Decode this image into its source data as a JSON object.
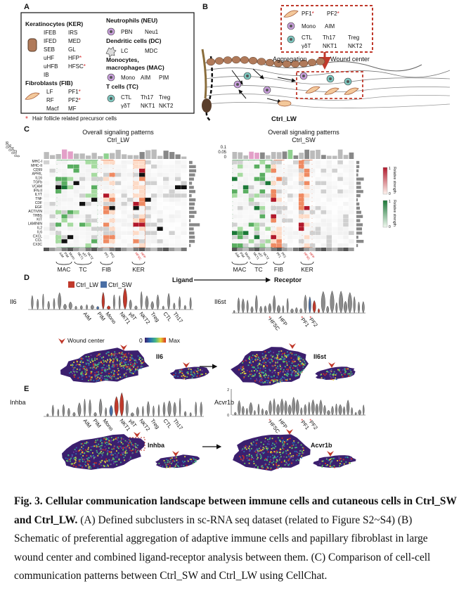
{
  "panel_a": {
    "label": "A",
    "keratinocytes": {
      "name": "Keratinocytes (KER)",
      "items": [
        "IFEB",
        "IRS",
        "IFED",
        "MED",
        "SEB",
        "GL",
        "uHF",
        {
          "text": "HFP",
          "suffix": "*"
        },
        "uHFB",
        {
          "text": "HFSC",
          "suffix": "*"
        },
        "IB"
      ]
    },
    "fibroblasts": {
      "name": "Fibroblasts (FIB)",
      "items": [
        "LF",
        {
          "text": "PF1",
          "suffix": "*"
        },
        "RF",
        {
          "text": "PF2",
          "suffix": "*"
        },
        "Macf",
        "MF"
      ]
    },
    "neutrophils": {
      "name": "Neutrophils (NEU)",
      "items": [
        "PBN",
        "Neu1"
      ]
    },
    "dendritic": {
      "name": "Dendritic cells (DC)",
      "items": [
        "LC",
        "MDC"
      ]
    },
    "macrophages": {
      "name_lines": [
        "Monocytes,",
        "macrophages (MAC)"
      ],
      "items": [
        "Mono",
        "AIM",
        "PIM"
      ]
    },
    "tcells": {
      "name": "T cells (TC)",
      "items": [
        "CTL",
        "Th17",
        "Treg",
        "γδT",
        "NKT1",
        "NKT2"
      ]
    },
    "footnote": {
      "mark": "*",
      "text": "Hair follicle related precursor cells"
    }
  },
  "panel_b": {
    "label": "B",
    "box_items": [
      {
        "text": "PF1",
        "suffix": "*"
      },
      {
        "text": "PF2",
        "suffix": "*"
      },
      "Mono",
      "AIM",
      "CTL",
      "Th17",
      "Treg",
      "γδT",
      "NKT1",
      "NKT2"
    ],
    "aggregation": "Aggregation",
    "wound_center": "Wound center",
    "condition": "Ctrl_LW"
  },
  "panel_c": {
    "label": "C",
    "left_title": "Overall signaling patterns",
    "left_condition": "Ctrl_LW",
    "right_title": "Overall signaling patterns",
    "right_condition": "Ctrl_SW",
    "left_ticks": [
      "0.08",
      "0.06",
      "0.04",
      "0.02",
      "0"
    ],
    "right_ticks": [
      "0.1",
      "0.05",
      "0"
    ],
    "pathways": [
      "MHC-I",
      "MHC-II",
      "CD99",
      "APRIL",
      "IL16",
      "TGFb",
      "VCAM",
      "IFN-II",
      "ILYT",
      "TNF",
      "CDF",
      "EGF",
      "ACTIVIN",
      "THBS",
      "KIT",
      "LAMININ",
      "IL2",
      "IL6",
      "CXCL",
      "CCL",
      "CX3C"
    ],
    "cells": [
      "AIM",
      "PIM",
      "Mono",
      "NKT1",
      "γδT",
      "NKT2",
      "PF1",
      "PF2"
    ],
    "ker_cells": [
      "HFSC",
      "HFP"
    ],
    "groups": [
      "MAC",
      "TC",
      "FIB",
      "KER"
    ],
    "colorbar_title": "Relative strength",
    "colorbar_max": "1",
    "colorbar_min": "0"
  },
  "panel_d": {
    "label": "D",
    "ligand": "Ligand",
    "receptor": "Receptor",
    "legend": [
      "Ctrl_LW",
      "Ctrl_SW"
    ],
    "ligand_gene": "Il6",
    "receptor_gene": "Il6st",
    "ligand_cells": [
      "AIM",
      "PIM",
      "Mono",
      "NKT1",
      "γδT",
      "NKT2",
      "Treg",
      "CTL",
      "Th17"
    ],
    "receptor_cells": [
      {
        "prefix": "*",
        "text": "HFSC"
      },
      "HFP",
      {
        "prefix": "*",
        "text": "PF1"
      },
      {
        "prefix": "*",
        "text": "PF2"
      }
    ],
    "wound_center": "Wound center",
    "scale_min": "0",
    "scale_max": "Max",
    "map_ligand": "Il6",
    "map_receptor": "Il6st"
  },
  "panel_e": {
    "label": "E",
    "ligand_gene": "Inhba",
    "receptor_gene": "Acvr1b",
    "receptor_ticks": [
      "2",
      "0"
    ],
    "ligand_cells": [
      "AIM",
      "PIM",
      "Mono",
      "NKT1",
      "γδT",
      "NKT2",
      "Treg",
      "CTL",
      "Th17"
    ],
    "receptor_cells": [
      {
        "prefix": "*",
        "text": "HFSC"
      },
      "HFP",
      {
        "prefix": "*",
        "text": "PF1"
      },
      {
        "prefix": "*",
        "text": "PF2"
      }
    ],
    "map_ligand": "Inhba",
    "map_receptor": "Acvr1b"
  },
  "caption": {
    "title": "Fig. 3. Cellular communication landscape between immune cells and cutaneous cells in Ctrl_SW and Ctrl_LW.",
    "text": "(A) Defined subclusters in sc-RNA seq dataset (related to Figure S2~S4) (B) Schematic of preferential aggregation of adaptive immune cells and papillary fibroblast in large wound center and combined ligand-receptor analysis between them.  (C) Comparison of cell-cell communication patterns between Ctrl_SW and Ctrl_LW using CellChat."
  }
}
